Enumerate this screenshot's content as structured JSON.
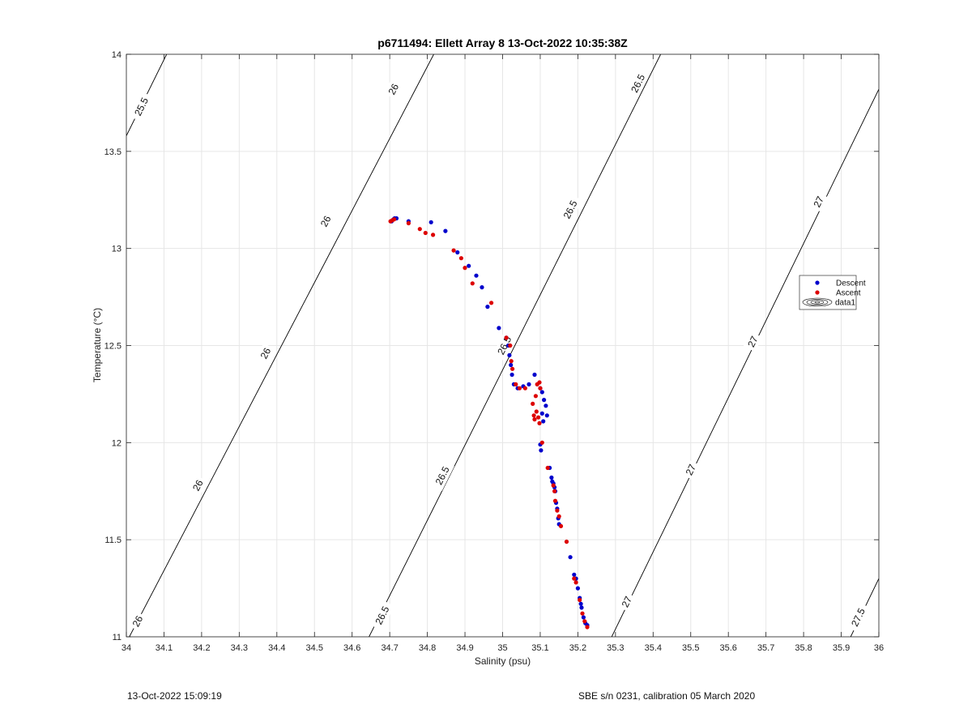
{
  "chart_data": {
    "type": "scatter",
    "title": "p6711494: Ellett Array 8 13-Oct-2022 10:35:38Z",
    "xlabel": "Salinity (psu)",
    "ylabel": "Temperature (°C)",
    "xlim": [
      34,
      36
    ],
    "ylim": [
      11,
      14
    ],
    "xticks": [
      34,
      34.1,
      34.2,
      34.3,
      34.4,
      34.5,
      34.6,
      34.7,
      34.8,
      34.9,
      35,
      35.1,
      35.2,
      35.3,
      35.4,
      35.5,
      35.6,
      35.7,
      35.8,
      35.9,
      36
    ],
    "xtick_labels": [
      "34",
      "34.1",
      "34.2",
      "34.3",
      "34.4",
      "34.5",
      "34.6",
      "34.7",
      "34.8",
      "34.9",
      "35",
      "35.1",
      "35.2",
      "35.3",
      "35.4",
      "35.5",
      "35.6",
      "35.7",
      "35.8",
      "35.9",
      "36"
    ],
    "yticks": [
      11,
      11.5,
      12,
      12.5,
      13,
      13.5,
      14
    ],
    "ytick_labels": [
      "11",
      "11.5",
      "12",
      "12.5",
      "13",
      "13.5",
      "14"
    ],
    "grid": true,
    "legend_position": "right",
    "legend": [
      "Descent",
      "Ascent",
      "data1"
    ],
    "colors": {
      "descent": "#0000cc",
      "ascent": "#dd0000",
      "contour": "#000000",
      "grid": "#e6e6e6",
      "axis": "#222222"
    },
    "series": [
      {
        "name": "Descent",
        "x": [
          34.705,
          34.71,
          34.713,
          34.718,
          34.75,
          34.81,
          34.848,
          34.88,
          34.91,
          34.93,
          34.945,
          34.96,
          34.99,
          35.01,
          35.015,
          35.018,
          35.022,
          35.025,
          35.03,
          35.04,
          35.055,
          35.07,
          35.085,
          35.1,
          35.105,
          35.11,
          35.115,
          35.118,
          35.105,
          35.108,
          35.1,
          35.102,
          35.125,
          35.13,
          35.132,
          35.135,
          35.138,
          35.14,
          35.142,
          35.145,
          35.148,
          35.15,
          35.18,
          35.19,
          35.195,
          35.2,
          35.205,
          35.208,
          35.21,
          35.215,
          35.22,
          35.225
        ],
        "y": [
          13.14,
          13.15,
          13.155,
          13.155,
          13.14,
          13.135,
          13.09,
          12.98,
          12.91,
          12.86,
          12.8,
          12.7,
          12.59,
          12.54,
          12.5,
          12.45,
          12.4,
          12.35,
          12.3,
          12.28,
          12.29,
          12.3,
          12.35,
          12.28,
          12.26,
          12.22,
          12.19,
          12.14,
          12.15,
          12.11,
          11.99,
          11.96,
          11.87,
          11.82,
          11.8,
          11.79,
          11.77,
          11.75,
          11.69,
          11.66,
          11.61,
          11.58,
          11.41,
          11.32,
          11.3,
          11.25,
          11.2,
          11.17,
          11.15,
          11.1,
          11.07,
          11.06
        ]
      },
      {
        "name": "Ascent",
        "x": [
          34.702,
          34.707,
          34.712,
          34.75,
          34.78,
          34.795,
          34.815,
          34.87,
          34.89,
          34.9,
          34.92,
          34.97,
          35.01,
          35.02,
          35.023,
          35.026,
          35.035,
          35.045,
          35.06,
          35.08,
          35.088,
          35.092,
          35.098,
          35.1,
          35.09,
          35.083,
          35.085,
          35.095,
          35.098,
          35.105,
          35.12,
          35.135,
          35.138,
          35.14,
          35.145,
          35.15,
          35.155,
          35.17,
          35.19,
          35.195,
          35.205,
          35.212,
          35.218,
          35.225
        ],
        "y": [
          13.14,
          13.145,
          13.15,
          13.13,
          13.1,
          13.08,
          13.07,
          12.99,
          12.95,
          12.9,
          12.82,
          12.72,
          12.54,
          12.5,
          12.42,
          12.38,
          12.3,
          12.28,
          12.28,
          12.2,
          12.24,
          12.3,
          12.31,
          12.28,
          12.16,
          12.14,
          12.12,
          12.13,
          12.1,
          12.0,
          11.87,
          11.78,
          11.75,
          11.7,
          11.65,
          11.62,
          11.57,
          11.49,
          11.3,
          11.28,
          11.19,
          11.12,
          11.08,
          11.05
        ]
      }
    ],
    "contours": [
      {
        "label": "25.5",
        "points": [
          [
            34,
            13.58
          ],
          [
            34.107,
            14
          ]
        ],
        "label_positions": [
          [
            34.04,
            13.73
          ]
        ]
      },
      {
        "label": "26",
        "points": [
          [
            34.008,
            11
          ],
          [
            34.817,
            14
          ]
        ],
        "label_positions": [
          [
            34.03,
            11.08
          ],
          [
            34.19,
            11.78
          ],
          [
            34.37,
            12.46
          ],
          [
            34.53,
            13.14
          ],
          [
            34.71,
            13.82
          ]
        ]
      },
      {
        "label": "26.5",
        "points": [
          [
            34.645,
            11
          ],
          [
            35.42,
            14
          ]
        ],
        "label_positions": [
          [
            34.68,
            11.11
          ],
          [
            34.84,
            11.83
          ],
          [
            35.005,
            12.5
          ],
          [
            35.18,
            13.2
          ],
          [
            35.36,
            13.85
          ]
        ]
      },
      {
        "label": "27",
        "points": [
          [
            35.29,
            11
          ],
          [
            36,
            13.82
          ]
        ],
        "label_positions": [
          [
            35.33,
            11.18
          ],
          [
            35.5,
            11.86
          ],
          [
            35.665,
            12.52
          ],
          [
            35.84,
            13.24
          ]
        ]
      },
      {
        "label": "27.5",
        "points": [
          [
            35.925,
            11
          ],
          [
            36,
            11.3
          ]
        ],
        "label_positions": [
          [
            35.945,
            11.1
          ]
        ]
      }
    ]
  },
  "footer": {
    "left": "13-Oct-2022 15:09:19",
    "right": "SBE s/n 0231, calibration 05 March 2020"
  }
}
